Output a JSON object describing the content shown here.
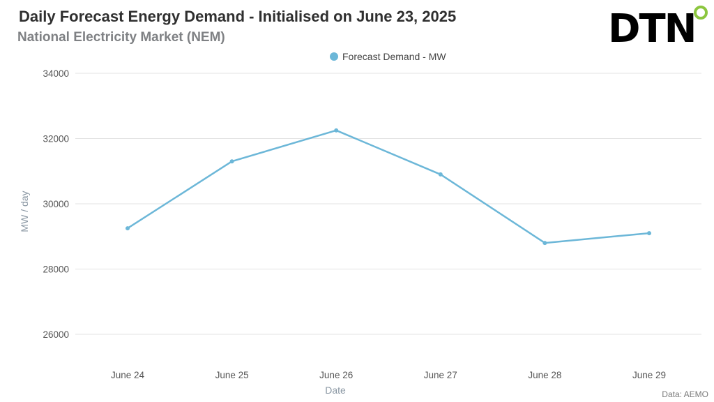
{
  "header": {
    "title": "Daily Forecast Energy Demand - Initialised on June 23, 2025",
    "subtitle": "National Electricity Market (NEM)",
    "logo_text": "DTN",
    "logo_dot_color": "#8cc63f"
  },
  "source": "Data: AEMO",
  "colors": {
    "series": "#6cb7d8",
    "grid": "#e3e3e3"
  },
  "chart_data": {
    "type": "line",
    "title": "Daily Forecast Energy Demand - Initialised on June 23, 2025",
    "subtitle": "National Electricity Market (NEM)",
    "xlabel": "Date",
    "ylabel": "MW / day",
    "categories": [
      "June 24",
      "June 25",
      "June 26",
      "June 27",
      "June 28",
      "June 29"
    ],
    "series": [
      {
        "name": "Forecast Demand - MW",
        "values": [
          29250,
          31300,
          32250,
          30900,
          28800,
          29100
        ]
      }
    ],
    "ylim": [
      26000,
      34000
    ],
    "yticks": [
      26000,
      28000,
      30000,
      32000,
      34000
    ],
    "grid": true,
    "legend": "top-center"
  }
}
